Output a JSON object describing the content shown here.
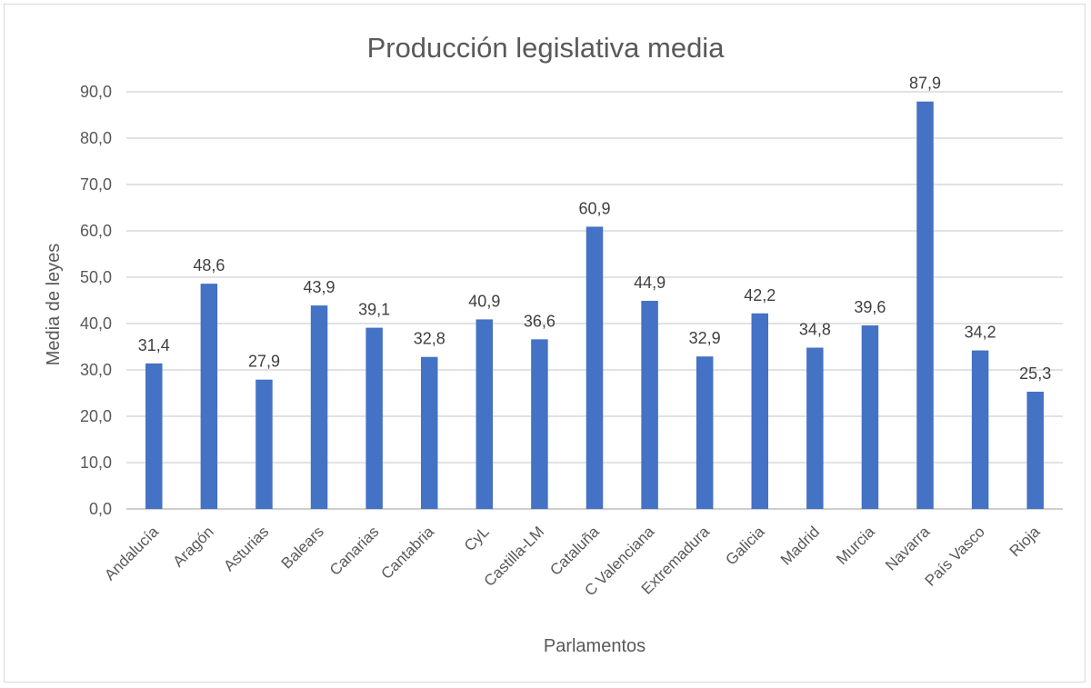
{
  "chart_data": {
    "type": "bar",
    "title": "Producción legislativa media",
    "xlabel": "Parlamentos",
    "ylabel": "Media de leyes",
    "categories": [
      "Andalucía",
      "Aragón",
      "Asturias",
      "Balears",
      "Canarias",
      "Cantabria",
      "CyL",
      "Castilla-LM",
      "Cataluña",
      "C Valenciana",
      "Extremadura",
      "Galicia",
      "Madrid",
      "Murcia",
      "Navarra",
      "País Vasco",
      "Rioja"
    ],
    "values": [
      31.4,
      48.6,
      27.9,
      43.9,
      39.1,
      32.8,
      40.9,
      36.6,
      60.9,
      44.9,
      32.9,
      42.2,
      34.8,
      39.6,
      87.9,
      34.2,
      25.3
    ],
    "data_labels": [
      "31,4",
      "48,6",
      "27,9",
      "43,9",
      "39,1",
      "32,8",
      "40,9",
      "36,6",
      "60,9",
      "44,9",
      "32,9",
      "42,2",
      "34,8",
      "39,6",
      "87,9",
      "34,2",
      "25,3"
    ],
    "yticks": [
      0,
      10,
      20,
      30,
      40,
      50,
      60,
      70,
      80,
      90
    ],
    "ytick_labels": [
      "0,0",
      "10,0",
      "20,0",
      "30,0",
      "40,0",
      "50,0",
      "60,0",
      "70,0",
      "80,0",
      "90,0"
    ],
    "ylim": [
      0,
      90
    ],
    "grid": true,
    "legend": "none",
    "bar_color": "#4472C4"
  }
}
